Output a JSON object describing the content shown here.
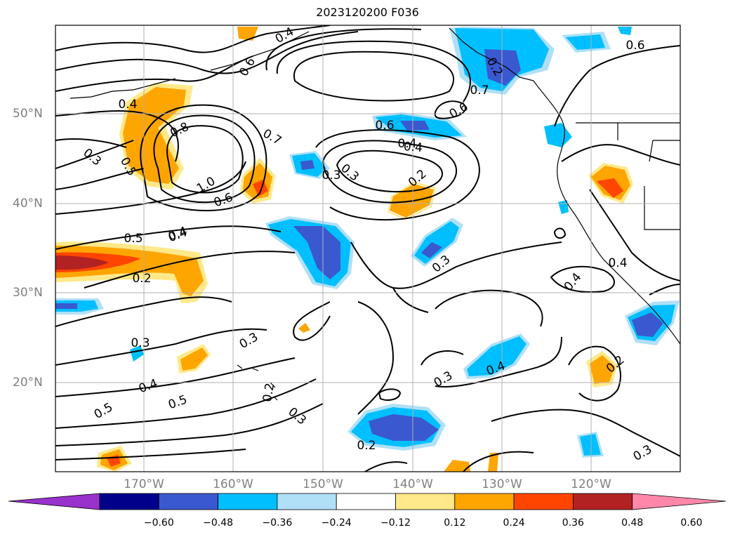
{
  "title": "2023120200 F036",
  "lat_labels": [
    "50°N",
    "40°N",
    "30°N",
    "20°N"
  ],
  "lon_labels": [
    "170°W",
    "160°W",
    "150°W",
    "140°W",
    "130°W",
    "120°W"
  ],
  "contour_labels": [
    "0.3",
    "0.4",
    "0.5",
    "0.4",
    "0.8",
    "0.7",
    "0.6",
    "0.4",
    "0.3",
    "0.2",
    "0.3",
    "0.4",
    "1.0",
    "0.6",
    "0.5",
    "0.4",
    "0.2",
    "0.6",
    "0.7",
    "0.6",
    "0.3",
    "0.4",
    "0.3",
    "0.3",
    "0.4",
    "0.5",
    "0.5",
    "0.3",
    "0.2",
    "0.3",
    "0.2",
    "0.4",
    "0.3",
    "0.2",
    "0.4",
    "0.2",
    "0.6",
    "0.4"
  ],
  "colorbar": {
    "ticks": [
      "−0.60",
      "−0.48",
      "−0.36",
      "−0.24",
      "−0.12",
      "0.12",
      "0.24",
      "0.36",
      "0.48",
      "0.60"
    ],
    "colors": [
      "#9932cc",
      "#00008b",
      "#3a58cf",
      "#00bfff",
      "#b0e0f8",
      "#ffffff",
      "#ffe98a",
      "#ffa500",
      "#ff4500",
      "#b22222",
      "#ff88aa"
    ]
  }
}
